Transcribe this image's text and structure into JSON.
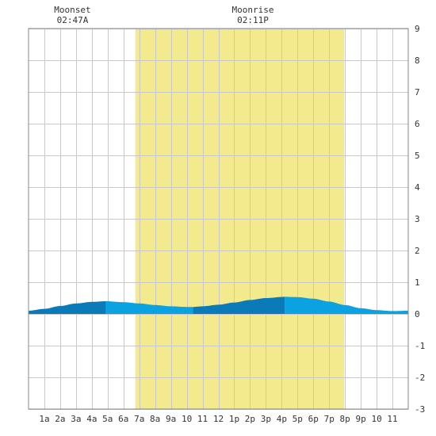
{
  "chart_data": {
    "type": "area",
    "title": "",
    "xlabel": "",
    "ylabel": "",
    "xlim": [
      0,
      24
    ],
    "ylim": [
      -3,
      9
    ],
    "grid": true,
    "y_ticks": [
      9,
      8,
      7,
      6,
      5,
      4,
      3,
      2,
      1,
      0,
      -1,
      -2,
      -3
    ],
    "x_ticks": [
      {
        "hour": 1,
        "label": "1a"
      },
      {
        "hour": 2,
        "label": "2a"
      },
      {
        "hour": 3,
        "label": "3a"
      },
      {
        "hour": 4,
        "label": "4a"
      },
      {
        "hour": 5,
        "label": "5a"
      },
      {
        "hour": 6,
        "label": "6a"
      },
      {
        "hour": 7,
        "label": "7a"
      },
      {
        "hour": 8,
        "label": "8a"
      },
      {
        "hour": 9,
        "label": "9a"
      },
      {
        "hour": 10,
        "label": "10"
      },
      {
        "hour": 11,
        "label": "11"
      },
      {
        "hour": 12,
        "label": "12"
      },
      {
        "hour": 13,
        "label": "1p"
      },
      {
        "hour": 14,
        "label": "2p"
      },
      {
        "hour": 15,
        "label": "3p"
      },
      {
        "hour": 16,
        "label": "4p"
      },
      {
        "hour": 17,
        "label": "5p"
      },
      {
        "hour": 18,
        "label": "6p"
      },
      {
        "hour": 19,
        "label": "7p"
      },
      {
        "hour": 20,
        "label": "8p"
      },
      {
        "hour": 21,
        "label": "9p"
      },
      {
        "hour": 22,
        "label": "10"
      },
      {
        "hour": 23,
        "label": "11"
      }
    ],
    "daylight": {
      "start_hour": 6.75,
      "end_hour": 19.95,
      "color": "#f2ea8c"
    },
    "moon_events": [
      {
        "name": "Moonset",
        "time": "02:47A",
        "hour": 2.78
      },
      {
        "name": "Moonrise",
        "time": "02:11P",
        "hour": 14.18
      }
    ],
    "tide_series": {
      "hours": [
        0,
        1,
        2,
        3,
        4,
        4.9,
        6,
        7,
        8,
        9,
        10,
        10.4,
        11,
        12,
        13,
        14,
        15,
        16.2,
        17,
        18,
        19,
        20,
        21,
        22,
        23,
        24
      ],
      "heights": [
        0.1,
        0.16,
        0.25,
        0.33,
        0.38,
        0.4,
        0.37,
        0.33,
        0.28,
        0.24,
        0.22,
        0.22,
        0.24,
        0.29,
        0.36,
        0.44,
        0.5,
        0.54,
        0.53,
        0.48,
        0.39,
        0.28,
        0.18,
        0.12,
        0.09,
        0.1
      ]
    },
    "tide_bands": [
      {
        "start_hour": 0,
        "end_hour": 4.9,
        "color": "#0a7bb8"
      },
      {
        "start_hour": 4.9,
        "end_hour": 10.4,
        "color": "#0aa2e0"
      },
      {
        "start_hour": 10.4,
        "end_hour": 16.2,
        "color": "#0a7bb8"
      },
      {
        "start_hour": 16.2,
        "end_hour": 24,
        "color": "#0aa2e0"
      }
    ],
    "colors": {
      "grid": "#c8c8c8",
      "frame": "#888888",
      "background": "#ffffff"
    }
  }
}
